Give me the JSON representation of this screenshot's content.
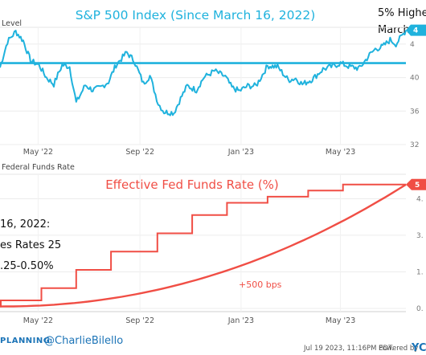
{
  "chart_data": [
    {
      "type": "line",
      "title": "S&P 500 Index (Since March 16, 2022)",
      "ylabel": "Level",
      "x_ticks": [
        "May '22",
        "Sep '22",
        "Jan '23",
        "May '23"
      ],
      "y_ticks": [
        "32",
        "36",
        "40",
        "4"
      ],
      "ylim": [
        3200,
        4600
      ],
      "grid": true,
      "annotation_lines": [
        "5% Highe",
        "March 16"
      ],
      "end_label": "4",
      "reference_level": 4173,
      "series": [
        {
          "color": "#1fb2dd",
          "x": [
            "2022-03-16",
            "2022-03-25",
            "2022-04-04",
            "2022-04-13",
            "2022-04-22",
            "2022-05-02",
            "2022-05-11",
            "2022-05-20",
            "2022-05-30",
            "2022-06-08",
            "2022-06-16",
            "2022-06-27",
            "2022-07-06",
            "2022-07-15",
            "2022-07-25",
            "2022-08-03",
            "2022-08-16",
            "2022-08-25",
            "2022-09-05",
            "2022-09-13",
            "2022-09-23",
            "2022-09-30",
            "2022-10-12",
            "2022-10-20",
            "2022-10-28",
            "2022-11-08",
            "2022-11-17",
            "2022-11-30",
            "2022-12-13",
            "2022-12-21",
            "2022-12-30",
            "2023-01-09",
            "2023-01-19",
            "2023-02-02",
            "2023-02-14",
            "2023-02-27",
            "2023-03-08",
            "2023-03-16",
            "2023-03-28",
            "2023-04-10",
            "2023-04-20",
            "2023-05-01",
            "2023-05-12",
            "2023-05-24",
            "2023-06-05",
            "2023-06-12",
            "2023-06-21",
            "2023-06-30",
            "2023-07-07",
            "2023-07-19"
          ],
          "y": [
            4120,
            4430,
            4550,
            4440,
            4200,
            4150,
            4000,
            3920,
            4150,
            4130,
            3700,
            3910,
            3850,
            3880,
            3950,
            4150,
            4300,
            4200,
            3930,
            4020,
            3690,
            3590,
            3580,
            3750,
            3900,
            3850,
            4000,
            4080,
            4010,
            3880,
            3840,
            3900,
            3900,
            4140,
            4130,
            3970,
            3990,
            3920,
            3980,
            4100,
            4130,
            4170,
            4130,
            4110,
            4270,
            4340,
            4370,
            4450,
            4400,
            4565
          ]
        }
      ]
    },
    {
      "type": "line",
      "title": "Effective Fed Funds Rate (%)",
      "ylabel": "Federal Funds Rate",
      "x_ticks": [
        "May '22",
        "Sep '22",
        "Jan '23",
        "May '23"
      ],
      "y_ticks": [
        "0.",
        "1.",
        "3.",
        "4."
      ],
      "ylim": [
        0,
        5.5
      ],
      "grid": true,
      "end_label": "5",
      "curve_label": "+500 bps",
      "side_text": [
        "16, 2022:",
        "es Rates 25",
        ".25-0.50%"
      ],
      "series": [
        {
          "color": "#f04e45",
          "shape": "step",
          "x": [
            "2022-03-16",
            "2022-03-17",
            "2022-05-05",
            "2022-06-16",
            "2022-07-28",
            "2022-09-22",
            "2022-11-03",
            "2022-12-15",
            "2023-02-02",
            "2023-03-23",
            "2023-05-04",
            "2023-07-19"
          ],
          "y": [
            0.08,
            0.33,
            0.83,
            1.58,
            2.33,
            3.08,
            3.83,
            4.33,
            4.58,
            4.83,
            5.08,
            5.08
          ]
        },
        {
          "color": "#f04e45",
          "shape": "smooth",
          "x": [
            "2022-03-16",
            "2023-07-19"
          ],
          "y": [
            0.08,
            5.08
          ]
        }
      ]
    }
  ],
  "footer": {
    "left_text": "PLANNING",
    "handle": "@CharlieBilello",
    "timestamp": "Jul 19 2023, 11:16PM EDT.",
    "powered_by": "Powered by",
    "brand": "YC",
    "accent_blue": "#1c74b7",
    "grey": "#555555"
  }
}
